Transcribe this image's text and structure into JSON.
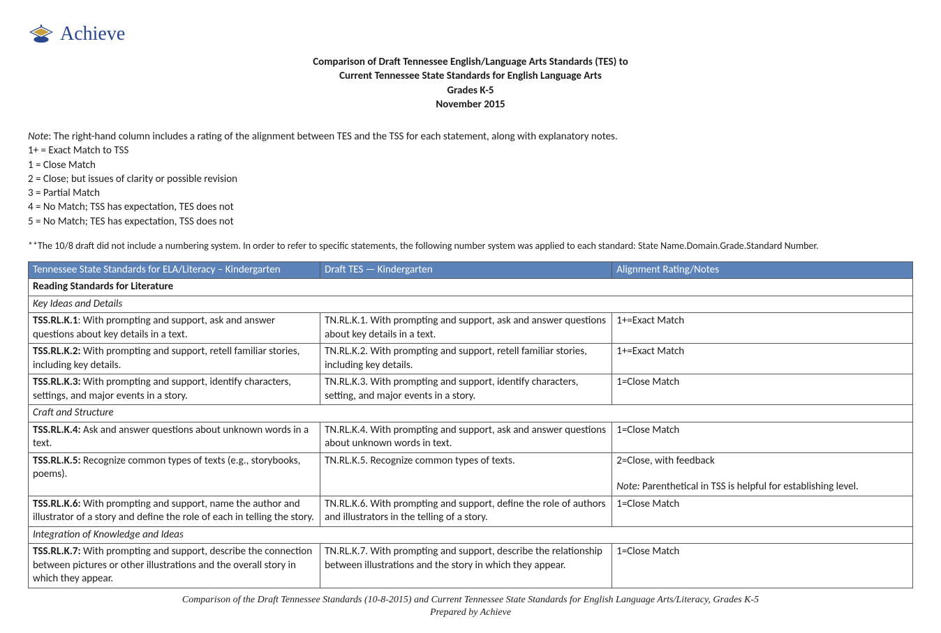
{
  "logo_text": "Achieve",
  "title": {
    "line1": "Comparison of Draft Tennessee English/Language Arts Standards (TES) to",
    "line2": "Current Tennessee State Standards for English Language Arts",
    "line3": "Grades K-5",
    "line4": "November 2015"
  },
  "note_block": {
    "intro_label": "Note",
    "intro_text": ": The right-hand column includes a rating of the alignment between TES and the TSS for each statement, along with explanatory notes.",
    "ratings": [
      "1+ = Exact Match to TSS",
      "1 = Close Match",
      "2 = Close; but issues of clarity or possible revision",
      "3 = Partial Match",
      "4 = No Match; TSS has expectation, TES does not",
      "5 = No Match; TES has expectation, TSS does not"
    ]
  },
  "disclaimer": "**The 10/8 draft did not include a numbering system. In order to refer to specific statements, the following number system was applied to each standard: State Name.Domain.Grade.Standard Number.",
  "columns": [
    "Tennessee State Standards for ELA/Literacy – Kindergarten",
    "Draft TES — Kindergarten",
    "Alignment Rating/Notes"
  ],
  "section": "Reading Standards for Literature",
  "groups": [
    {
      "label": "Key Ideas and Details",
      "rows": [
        {
          "tss_code": "TSS.RL.K.1",
          "tss_sep": ": ",
          "tss_text": "With prompting and support, ask and answer questions about key details in a text.",
          "tes": "TN.RL.K.1. With prompting and support, ask and answer questions about key details in a text.",
          "rating": "1+=Exact Match",
          "note": ""
        },
        {
          "tss_code": "TSS.RL.K.2:",
          "tss_sep": " ",
          "tss_text": "With prompting and support, retell familiar stories, including key details.",
          "tes": "TN.RL.K.2. With prompting and support, retell familiar stories, including key details.",
          "rating": "1+=Exact Match",
          "note": ""
        },
        {
          "tss_code": "TSS.RL.K.3:",
          "tss_sep": " ",
          "tss_text": "With prompting and support, identify characters, settings, and major events in a story.",
          "tes": "TN.RL.K.3. With prompting and support, identify characters, setting, and major events in a story.",
          "rating": "1=Close Match",
          "note": ""
        }
      ]
    },
    {
      "label": "Craft and Structure",
      "rows": [
        {
          "tss_code": "TSS.RL.K.4:",
          "tss_sep": " ",
          "tss_text": "Ask and answer questions about unknown words in a text.",
          "tes": "TN.RL.K.4. With prompting and support, ask and answer questions about unknown words in text.",
          "rating": "1=Close Match",
          "note": ""
        },
        {
          "tss_code": "TSS.RL.K.5:",
          "tss_sep": " ",
          "tss_text": "Recognize common types of texts (e.g., storybooks, poems).",
          "tes": "TN.RL.K.5. Recognize common types of texts.",
          "rating": "2=Close, with feedback",
          "note": "Parenthetical in TSS is helpful for establishing level."
        },
        {
          "tss_code": "TSS.RL.K.6:",
          "tss_sep": " ",
          "tss_text": "With prompting and support, name the author and illustrator of a story and define the role of each in telling the story.",
          "tes": "TN.RL.K.6. With prompting and support, define the role of authors and illustrators in the telling of a story.",
          "rating": "1=Close Match",
          "note": ""
        }
      ]
    },
    {
      "label": "Integration of Knowledge and Ideas",
      "rows": [
        {
          "tss_code": "TSS.RL.K.7:",
          "tss_sep": " ",
          "tss_text": "With prompting and support, describe the connection between pictures or other illustrations and the overall story in which they appear.",
          "tes": "TN.RL.K.7. With prompting and support, describe the relationship between illustrations and the story in which they appear.",
          "rating": "1=Close Match",
          "note": ""
        }
      ]
    }
  ],
  "footer": {
    "line1": "Comparison of the Draft Tennessee Standards (10-8-2015) and Current Tennessee State Standards for English Language Arts/Literacy, Grades K-5",
    "line2": "Prepared by Achieve"
  },
  "note_label": "Note:"
}
